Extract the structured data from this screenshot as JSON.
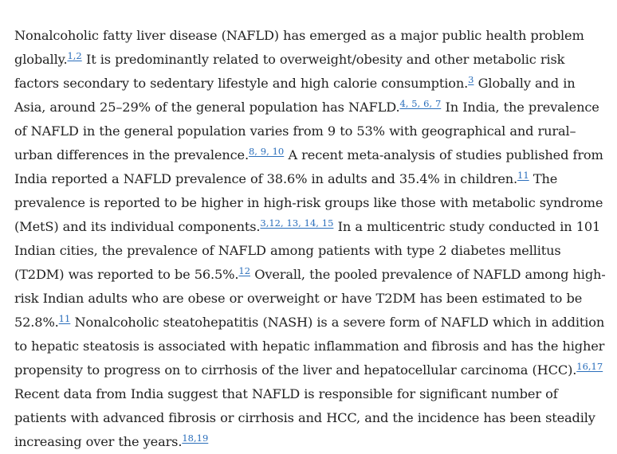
{
  "paragraph": {
    "t1": "Nonalcoholic fatty liver disease (NAFLD) has emerged as a major public health problem globally.",
    "r1": "1,2",
    "t2": " It is predominantly related to overweight/obesity and other metabolic risk factors secondary to sedentary lifestyle and high calorie consumption.",
    "r2": "3",
    "t3": " Globally and in Asia, around 25–29% of the general population has NAFLD.",
    "r3": "4, 5, 6, 7",
    "t4": " In India, the prevalence of NAFLD in the general population varies from 9 to 53% with geographical and rural–urban differences in the prevalence.",
    "r4": "8, 9, 10",
    "t5": " A recent meta-analysis of studies published from India reported a NAFLD prevalence of 38.6% in adults and 35.4% in children.",
    "r5": "11",
    "t6": " The prevalence is reported to be higher in high-risk groups like those with metabolic syndrome (MetS) and its individual components.",
    "r6": "3,12, 13, 14, 15",
    "t7": " In a multicentric study conducted in 101 Indian cities, the prevalence of NAFLD among patients with type 2 diabetes mellitus (T2DM) was reported to be 56.5%.",
    "r7": "12",
    "t8": " Overall, the pooled prevalence of NAFLD among high-risk Indian adults who are obese or overweight or have T2DM has been estimated to be 52.8%.",
    "r8": "11",
    "t9": " Nonalcoholic steatohepatitis (NASH) is a severe form of NAFLD which in addition to hepatic steatosis is associated with hepatic inflammation and fibrosis and has the higher propensity to progress on to cirrhosis of the liver and hepatocellular carcinoma (HCC).",
    "r9": "16,17",
    "t10": " Recent data from India suggest that NAFLD is responsible for significant number of patients with advanced fibrosis or cirrhosis and HCC, and the incidence has been steadily increasing over the years.",
    "r10": "18,19"
  },
  "colors": {
    "text": "#222222",
    "link": "#2a6ebb",
    "background": "#ffffff"
  }
}
